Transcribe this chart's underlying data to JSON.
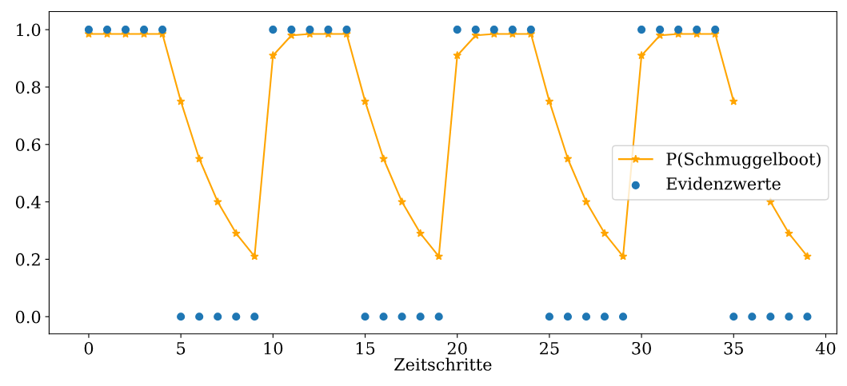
{
  "chart_data": {
    "type": "line",
    "xlabel": "Zeitschritte",
    "x": [
      0,
      1,
      2,
      3,
      4,
      5,
      6,
      7,
      8,
      9,
      10,
      11,
      12,
      13,
      14,
      15,
      16,
      17,
      18,
      19,
      20,
      21,
      22,
      23,
      24,
      25,
      26,
      27,
      28,
      29,
      30,
      31,
      32,
      33,
      34,
      35,
      36,
      37,
      38,
      39
    ],
    "series": [
      {
        "name": "P(Schmuggelboot)",
        "color": "#ffa500",
        "marker": "star",
        "values": [
          0.985,
          0.985,
          0.985,
          0.985,
          0.985,
          0.75,
          0.55,
          0.4,
          0.29,
          0.21,
          0.91,
          0.98,
          0.985,
          0.985,
          0.985,
          0.75,
          0.55,
          0.4,
          0.29,
          0.21,
          0.91,
          0.98,
          0.985,
          0.985,
          0.985,
          0.75,
          0.55,
          0.4,
          0.29,
          0.21,
          0.91,
          0.98,
          0.985,
          0.985,
          0.985,
          0.75,
          null,
          0.4,
          0.29,
          0.21
        ]
      },
      {
        "name": "Evidenzwerte",
        "type": "scatter",
        "color": "#1f77b4",
        "marker": "circle",
        "values": [
          1,
          1,
          1,
          1,
          1,
          0,
          0,
          0,
          0,
          0,
          1,
          1,
          1,
          1,
          1,
          0,
          0,
          0,
          0,
          0,
          1,
          1,
          1,
          1,
          1,
          0,
          0,
          0,
          0,
          0,
          1,
          1,
          1,
          1,
          1,
          0,
          0,
          0,
          0,
          0
        ]
      }
    ],
    "xlim": [
      -2.15,
      40.6
    ],
    "xticks": [
      0,
      5,
      10,
      15,
      20,
      25,
      30,
      35,
      40
    ],
    "ylim": [
      -0.06,
      1.063
    ],
    "yticks": [
      {
        "value": 0,
        "label": "0.0"
      },
      {
        "value": 0.2,
        "label": "0.2"
      },
      {
        "value": 0.4,
        "label": "0.4"
      },
      {
        "value": 0.6,
        "label": "0.6"
      },
      {
        "value": 0.8,
        "label": "0.8"
      },
      {
        "value": 1,
        "label": "1.0"
      }
    ],
    "grid": false,
    "legend": "center right"
  }
}
